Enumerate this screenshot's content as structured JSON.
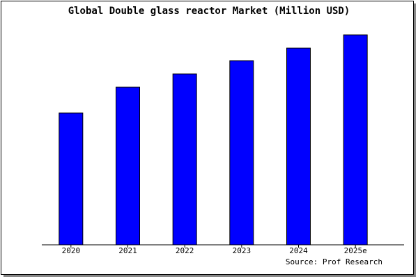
{
  "chart_data": {
    "type": "bar",
    "title": "Global Double glass reactor Market (Million USD)",
    "categories": [
      "2020",
      "2021",
      "2022",
      "2023",
      "2024",
      "2025e"
    ],
    "values": [
      189,
      226,
      245,
      264,
      282,
      301
    ],
    "color": "#0000ff",
    "ylim": [
      0,
      311
    ],
    "source": "Source: Prof Research"
  }
}
